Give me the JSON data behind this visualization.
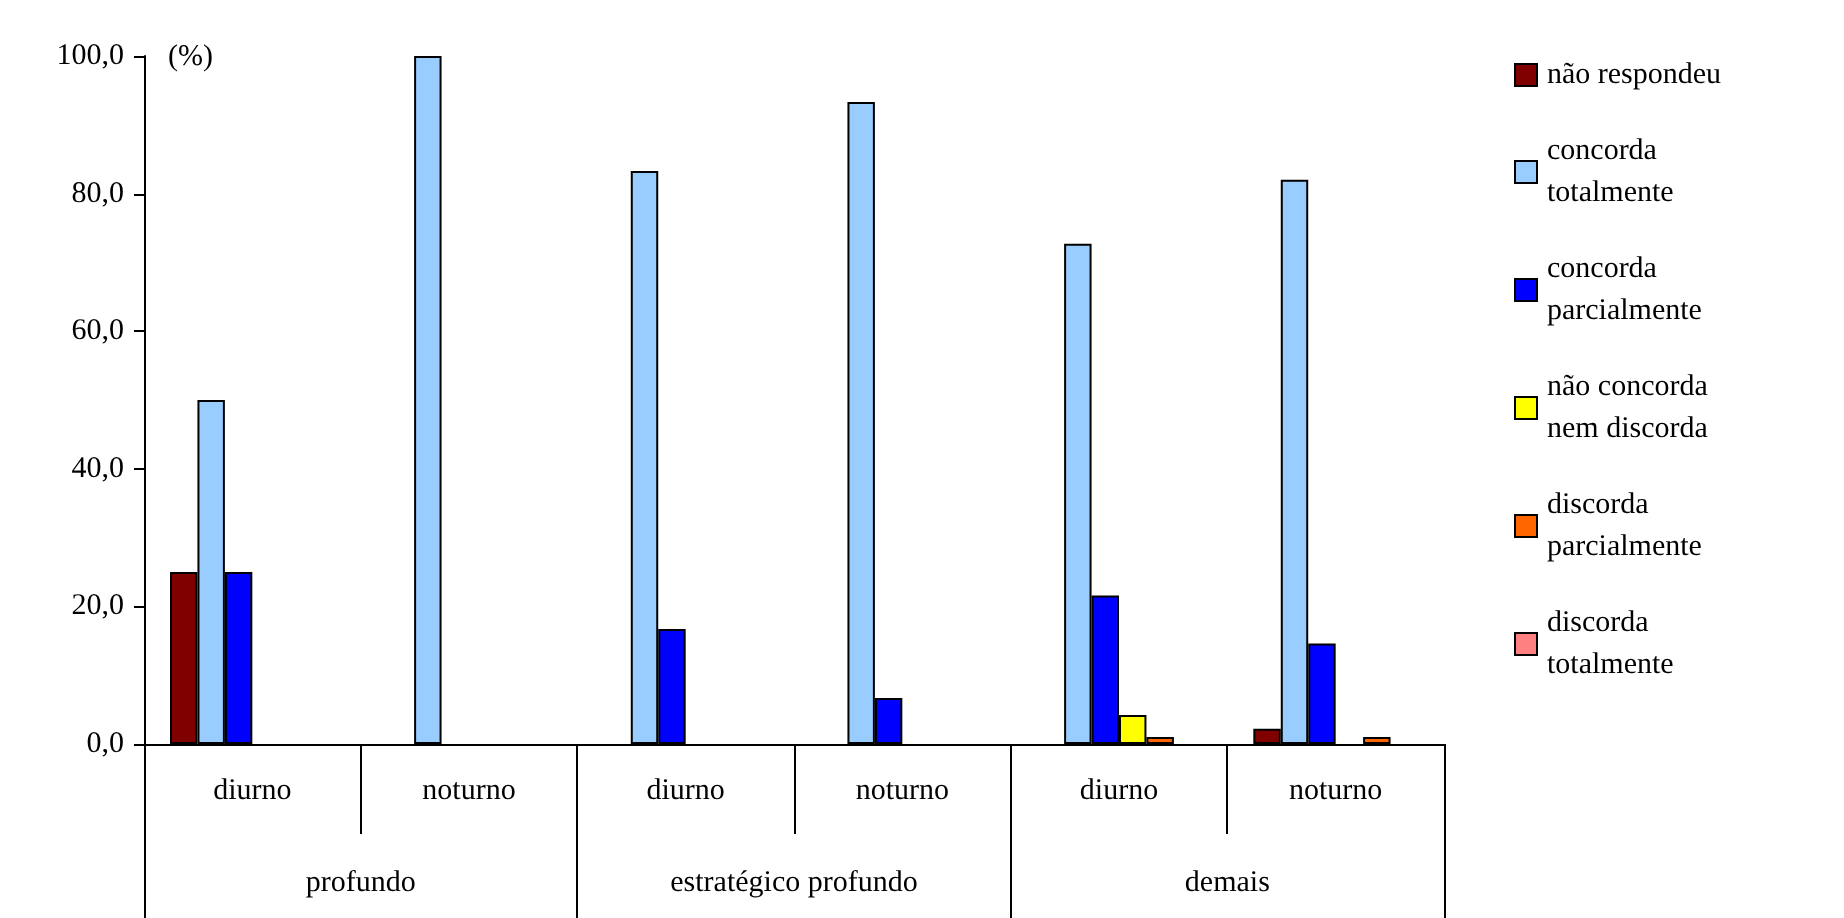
{
  "chart_data": {
    "type": "bar",
    "ylabel": "(%)",
    "categories": [
      "diurno",
      "noturno",
      "diurno",
      "noturno",
      "diurno",
      "noturno"
    ],
    "annotations": [
      "profundo",
      "estratégico profundo",
      "demais"
    ],
    "series": [
      {
        "name": "não respondeu",
        "color": "#800000",
        "values": [
          25.0,
          null,
          null,
          null,
          null,
          2.2
        ]
      },
      {
        "name": "concorda totalmente",
        "color": "#99ccff",
        "values": [
          50.0,
          100.0,
          83.3,
          93.3,
          72.7,
          82.0
        ]
      },
      {
        "name": "concorda parcialmente",
        "color": "#0000ff",
        "values": [
          25.0,
          null,
          16.7,
          6.7,
          21.6,
          14.6
        ]
      },
      {
        "name": "não concorda nem discorda",
        "color": "#ffff00",
        "values": [
          null,
          null,
          null,
          null,
          4.2,
          null
        ]
      },
      {
        "name": "discorda parcialmente",
        "color": "#ff6600",
        "values": [
          null,
          null,
          null,
          null,
          1.0,
          1.0
        ]
      },
      {
        "name": "discorda totalmente",
        "color": "#ff8080",
        "values": [
          null,
          null,
          null,
          null,
          null,
          null
        ]
      }
    ],
    "ylim": [
      0,
      100
    ],
    "yticks": [
      {
        "value": 0,
        "label": "0,0"
      },
      {
        "value": 20,
        "label": "20,0"
      },
      {
        "value": 40,
        "label": "40,0"
      },
      {
        "value": 60,
        "label": "60,0"
      },
      {
        "value": 80,
        "label": "80,0"
      },
      {
        "value": 100,
        "label": "100,0"
      }
    ],
    "grid": false,
    "legend": "right"
  }
}
